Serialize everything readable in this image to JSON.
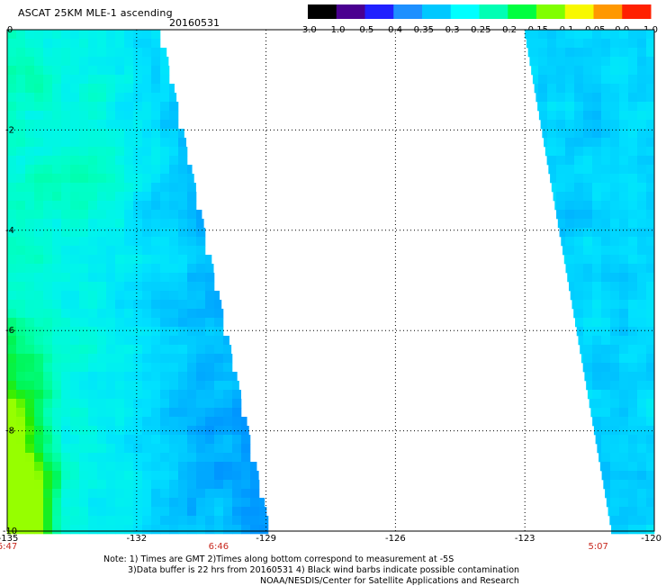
{
  "header": {
    "title": "ASCAT 25KM MLE-1 ascending",
    "date": "20160531"
  },
  "colorbar": {
    "labels": [
      "-3.0",
      "-1.0",
      "-0.5",
      "-0.4",
      "-0.35",
      "-0.3",
      "-0.25",
      "-0.2",
      "-0.15",
      "-0.1",
      "-0.05",
      "0.0",
      "1.0"
    ],
    "colors": [
      "#000000",
      "#4a0090",
      "#2020ff",
      "#1e90ff",
      "#00c8ff",
      "#00ffff",
      "#00ffb4",
      "#00ff40",
      "#80ff00",
      "#f8f800",
      "#ff9800",
      "#ff2000"
    ]
  },
  "axes": {
    "x_ticks": [
      "-135",
      "-132",
      "-129",
      "-126",
      "-123",
      "-120"
    ],
    "x_values": [
      -135,
      -132,
      -129,
      -126,
      -123,
      -120
    ],
    "y_ticks": [
      "0",
      "-2",
      "-4",
      "-6",
      "-8",
      "-10"
    ],
    "y_values": [
      0,
      -2,
      -4,
      -6,
      -8,
      -10
    ],
    "x_range": [
      -135,
      -120
    ],
    "y_range": [
      -10,
      0
    ],
    "grid": true
  },
  "times": [
    {
      "label": "6:47",
      "lon": -135
    },
    {
      "label": "6:46",
      "lon": -130.1
    },
    {
      "label": "5:07",
      "lon": -121.3
    }
  ],
  "swaths": [
    {
      "name": "west",
      "lon_west": -135,
      "east_edge_lon_at_top": -131.4,
      "east_edge_lon_at_bottom": -128.9
    },
    {
      "name": "east",
      "west_edge_lon_at_top": -123,
      "west_edge_lon_at_bottom": -121.0,
      "lon_east": -120
    }
  ],
  "notes": [
    "Note: 1) Times are GMT 2)Times along bottom correspond to measurement at -5S",
    "3)Data buffer is 22 hrs from 20160531 4) Black wind barbs indicate possible contamination",
    "NOAA/NESDIS/Center for Satellite Applications and Research"
  ]
}
